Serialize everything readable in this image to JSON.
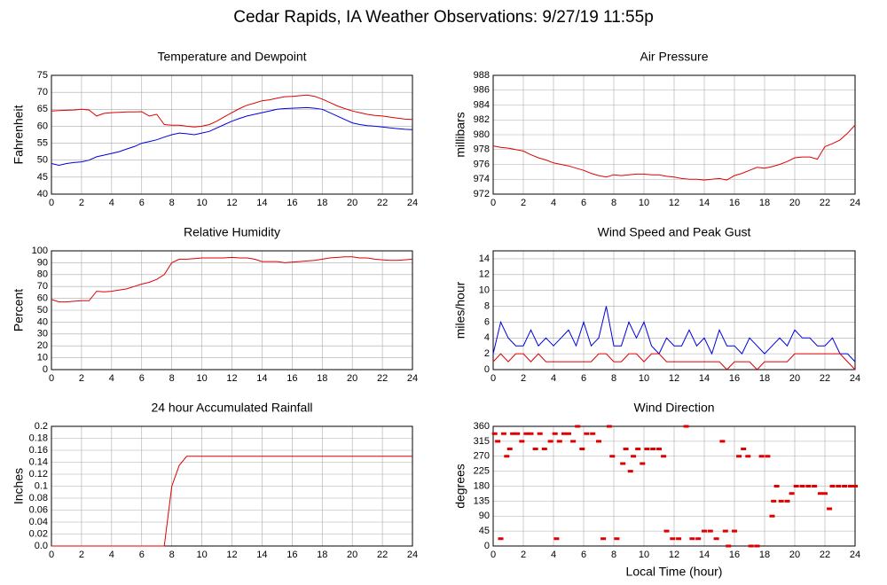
{
  "title": "Cedar Rapids, IA Weather Observations: 9/27/19 11:55p",
  "chart_data": [
    {
      "type": "line",
      "title": "Temperature and Dewpoint",
      "ylabel": "Fahrenheit",
      "grid": true,
      "x": [
        0,
        0.5,
        1,
        1.5,
        2,
        2.5,
        3,
        3.5,
        4,
        4.5,
        5,
        5.5,
        6,
        6.5,
        7,
        7.5,
        8,
        8.5,
        9,
        9.5,
        10,
        10.5,
        11,
        11.5,
        12,
        12.5,
        13,
        13.5,
        14,
        14.5,
        15,
        15.5,
        16,
        16.5,
        17,
        17.5,
        18,
        18.5,
        19,
        19.5,
        20,
        20.5,
        21,
        21.5,
        22,
        22.5,
        23,
        23.5,
        24
      ],
      "series": [
        {
          "color": "#e00000",
          "values": [
            64.5,
            64.6,
            64.7,
            64.8,
            65,
            64.8,
            63,
            63.8,
            64,
            64.1,
            64.2,
            64.2,
            64.3,
            63,
            63.5,
            60.5,
            60.3,
            60.3,
            60,
            59.8,
            60,
            60.5,
            61.5,
            62.8,
            64,
            65.2,
            66.2,
            66.8,
            67.5,
            67.8,
            68.3,
            68.7,
            68.8,
            69,
            69.2,
            68.8,
            68,
            67,
            66,
            65.2,
            64.5,
            64,
            63.5,
            63.2,
            63,
            62.7,
            62.4,
            62.1,
            62
          ]
        },
        {
          "color": "#0000e0",
          "values": [
            49,
            48.5,
            49,
            49.3,
            49.5,
            50,
            51,
            51.5,
            52,
            52.5,
            53.3,
            54,
            55,
            55.5,
            56,
            56.8,
            57.5,
            58,
            57.8,
            57.5,
            58,
            58.5,
            59.5,
            60.5,
            61.5,
            62.3,
            63,
            63.5,
            64,
            64.5,
            65,
            65.2,
            65.3,
            65.4,
            65.5,
            65.3,
            65,
            64,
            63,
            62,
            61,
            60.5,
            60.2,
            60,
            59.8,
            59.5,
            59.3,
            59.1,
            59
          ]
        }
      ],
      "xlim": [
        0,
        24
      ],
      "xticks": [
        0,
        2,
        4,
        6,
        8,
        10,
        12,
        14,
        16,
        18,
        20,
        22,
        24
      ],
      "ylim": [
        40,
        75
      ],
      "yticks": [
        40,
        45,
        50,
        55,
        60,
        65,
        70,
        75
      ]
    },
    {
      "type": "line",
      "title": "Air Pressure",
      "ylabel": "millibars",
      "grid": true,
      "x": [
        0,
        0.5,
        1,
        1.5,
        2,
        2.5,
        3,
        3.5,
        4,
        4.5,
        5,
        5.5,
        6,
        6.5,
        7,
        7.5,
        8,
        8.5,
        9,
        9.5,
        10,
        10.5,
        11,
        11.5,
        12,
        12.5,
        13,
        13.5,
        14,
        14.5,
        15,
        15.5,
        16,
        16.5,
        17,
        17.5,
        18,
        18.5,
        19,
        19.5,
        20,
        20.5,
        21,
        21.5,
        22,
        22.5,
        23,
        23.5,
        24
      ],
      "series": [
        {
          "color": "#e00000",
          "values": [
            978.5,
            978.3,
            978.2,
            978,
            977.8,
            977.3,
            976.9,
            976.6,
            976.2,
            976,
            975.8,
            975.5,
            975.2,
            974.8,
            974.5,
            974.3,
            974.6,
            974.5,
            974.6,
            974.7,
            974.7,
            974.6,
            974.6,
            974.4,
            974.3,
            974.1,
            974,
            974,
            973.9,
            974,
            974.1,
            973.9,
            974.5,
            974.8,
            975.2,
            975.6,
            975.5,
            975.7,
            976,
            976.4,
            976.9,
            977,
            977,
            976.7,
            978.4,
            978.8,
            979.3,
            980.2,
            981.3
          ]
        }
      ],
      "xlim": [
        0,
        24
      ],
      "xticks": [
        0,
        2,
        4,
        6,
        8,
        10,
        12,
        14,
        16,
        18,
        20,
        22,
        24
      ],
      "ylim": [
        972,
        988
      ],
      "yticks": [
        972,
        974,
        976,
        978,
        980,
        982,
        984,
        986,
        988
      ]
    },
    {
      "type": "line",
      "title": "Relative Humidity",
      "ylabel": "Percent",
      "grid": true,
      "x": [
        0,
        0.5,
        1,
        1.5,
        2,
        2.5,
        3,
        3.5,
        4,
        4.5,
        5,
        5.5,
        6,
        6.5,
        7,
        7.5,
        8,
        8.5,
        9,
        9.5,
        10,
        10.5,
        11,
        11.5,
        12,
        12.5,
        13,
        13.5,
        14,
        14.5,
        15,
        15.5,
        16,
        16.5,
        17,
        17.5,
        18,
        18.5,
        19,
        19.5,
        20,
        20.5,
        21,
        21.5,
        22,
        22.5,
        23,
        23.5,
        24
      ],
      "series": [
        {
          "color": "#e00000",
          "values": [
            59,
            57,
            57,
            57.5,
            58,
            58,
            66,
            65.5,
            66,
            67,
            68,
            70,
            72,
            73.5,
            76,
            80,
            90,
            93,
            93,
            93.5,
            94,
            94,
            94,
            94,
            94.5,
            94,
            94,
            93,
            91,
            91,
            91,
            90,
            90.5,
            91,
            91.5,
            92,
            93,
            94,
            94.5,
            95,
            95,
            94,
            94,
            93,
            92.5,
            92,
            92,
            92.5,
            93
          ]
        }
      ],
      "xlim": [
        0,
        24
      ],
      "xticks": [
        0,
        2,
        4,
        6,
        8,
        10,
        12,
        14,
        16,
        18,
        20,
        22,
        24
      ],
      "ylim": [
        0,
        100
      ],
      "yticks": [
        0,
        10,
        20,
        30,
        40,
        50,
        60,
        70,
        80,
        90,
        100
      ]
    },
    {
      "type": "line",
      "title": "Wind Speed and Peak Gust",
      "ylabel": "miles/hour",
      "grid": true,
      "x": [
        0,
        0.5,
        1,
        1.5,
        2,
        2.5,
        3,
        3.5,
        4,
        4.5,
        5,
        5.5,
        6,
        6.5,
        7,
        7.5,
        8,
        8.5,
        9,
        9.5,
        10,
        10.5,
        11,
        11.5,
        12,
        12.5,
        13,
        13.5,
        14,
        14.5,
        15,
        15.5,
        16,
        16.5,
        17,
        17.5,
        18,
        18.5,
        19,
        19.5,
        20,
        20.5,
        21,
        21.5,
        22,
        22.5,
        23,
        23.5,
        24
      ],
      "series": [
        {
          "color": "#0000e0",
          "values": [
            2,
            6,
            4,
            3,
            3,
            5,
            3,
            4,
            3,
            4,
            5,
            3,
            6,
            3,
            4,
            8,
            3,
            3,
            6,
            4,
            6,
            3,
            2,
            4,
            3,
            3,
            5,
            3,
            4,
            2,
            5,
            3,
            3,
            2,
            4,
            3,
            2,
            3,
            4,
            3,
            5,
            4,
            4,
            3,
            3,
            4,
            2,
            2,
            1
          ]
        },
        {
          "color": "#e00000",
          "values": [
            1,
            2,
            1,
            2,
            2,
            1,
            2,
            1,
            1,
            1,
            1,
            1,
            1,
            1,
            2,
            2,
            1,
            1,
            2,
            2,
            1,
            2,
            2,
            1,
            1,
            1,
            1,
            1,
            1,
            1,
            1,
            0,
            1,
            1,
            1,
            0,
            1,
            1,
            1,
            1,
            2,
            2,
            2,
            2,
            2,
            2,
            2,
            1,
            0
          ]
        }
      ],
      "xlim": [
        0,
        24
      ],
      "xticks": [
        0,
        2,
        4,
        6,
        8,
        10,
        12,
        14,
        16,
        18,
        20,
        22,
        24
      ],
      "ylim": [
        0,
        15
      ],
      "yticks": [
        0,
        2,
        4,
        6,
        8,
        10,
        12,
        14
      ]
    },
    {
      "type": "line",
      "title": "24 hour Accumulated Rainfall",
      "ylabel": "Inches",
      "grid": true,
      "x": [
        0,
        0.5,
        1,
        1.5,
        2,
        2.5,
        3,
        3.5,
        4,
        4.5,
        5,
        5.5,
        6,
        6.5,
        7,
        7.5,
        8,
        8.5,
        9,
        9.5,
        10,
        10.5,
        11,
        11.5,
        12,
        12.5,
        13,
        13.5,
        14,
        14.5,
        15,
        15.5,
        16,
        16.5,
        17,
        17.5,
        18,
        18.5,
        19,
        19.5,
        20,
        20.5,
        21,
        21.5,
        22,
        22.5,
        23,
        23.5,
        24
      ],
      "series": [
        {
          "color": "#e00000",
          "values": [
            0,
            0,
            0,
            0,
            0,
            0,
            0,
            0,
            0,
            0,
            0,
            0,
            0,
            0,
            0,
            0,
            0.1,
            0.135,
            0.15,
            0.15,
            0.15,
            0.15,
            0.15,
            0.15,
            0.15,
            0.15,
            0.15,
            0.15,
            0.15,
            0.15,
            0.15,
            0.15,
            0.15,
            0.15,
            0.15,
            0.15,
            0.15,
            0.15,
            0.15,
            0.15,
            0.15,
            0.15,
            0.15,
            0.15,
            0.15,
            0.15,
            0.15,
            0.15,
            0.15
          ]
        }
      ],
      "xlim": [
        0,
        24
      ],
      "xticks": [
        0,
        2,
        4,
        6,
        8,
        10,
        12,
        14,
        16,
        18,
        20,
        22,
        24
      ],
      "ylim": [
        0,
        0.2
      ],
      "yticks": [
        {
          "value": 0,
          "label": "0.0"
        },
        0.02,
        0.04,
        0.06,
        0.08,
        0.1,
        0.12,
        0.14,
        0.16,
        0.18,
        0.2
      ]
    },
    {
      "type": "scatter",
      "title": "Wind Direction",
      "ylabel": "degrees",
      "xlabel": "Local Time (hour)",
      "grid": true,
      "x": [
        0.1,
        0.3,
        0.5,
        0.7,
        0.9,
        1.1,
        1.3,
        1.6,
        1.9,
        2.2,
        2.5,
        2.8,
        3.1,
        3.4,
        3.8,
        4.1,
        4.2,
        4.4,
        4.7,
        5.0,
        5.3,
        5.6,
        5.9,
        6.2,
        6.6,
        7.0,
        7.3,
        7.7,
        7.9,
        8.2,
        8.6,
        8.8,
        9.1,
        9.3,
        9.6,
        9.9,
        10.2,
        10.6,
        11.0,
        11.3,
        11.5,
        11.9,
        12.3,
        12.8,
        13.2,
        13.6,
        14.0,
        14.4,
        14.8,
        15.2,
        15.4,
        15.6,
        16.0,
        16.3,
        16.6,
        16.9,
        17.1,
        17.5,
        17.8,
        18.2,
        18.5,
        18.6,
        18.8,
        19.1,
        19.5,
        19.8,
        20.1,
        20.5,
        20.9,
        21.3,
        21.7,
        22.0,
        22.3,
        22.5,
        22.9,
        23.3,
        23.7,
        24.0
      ],
      "color": "#e00000",
      "values": [
        338,
        315,
        22,
        338,
        270,
        292,
        338,
        338,
        315,
        338,
        338,
        292,
        338,
        292,
        315,
        338,
        22,
        315,
        338,
        338,
        315,
        360,
        292,
        338,
        338,
        315,
        22,
        360,
        270,
        22,
        248,
        292,
        225,
        270,
        292,
        248,
        292,
        292,
        292,
        270,
        45,
        22,
        22,
        360,
        22,
        22,
        45,
        45,
        22,
        315,
        45,
        0,
        45,
        270,
        292,
        270,
        0,
        0,
        270,
        270,
        90,
        135,
        180,
        135,
        135,
        158,
        180,
        180,
        180,
        180,
        158,
        158,
        112,
        180,
        180,
        180,
        180,
        180
      ],
      "xlim": [
        0,
        24
      ],
      "xticks": [
        0,
        2,
        4,
        6,
        8,
        10,
        12,
        14,
        16,
        18,
        20,
        22,
        24
      ],
      "ylim": [
        0,
        360
      ],
      "yticks": [
        0,
        45,
        90,
        135,
        180,
        225,
        270,
        315,
        360
      ]
    }
  ]
}
